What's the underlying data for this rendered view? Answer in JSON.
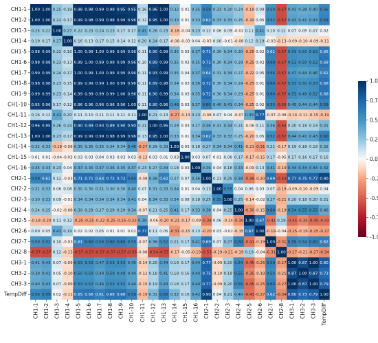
{
  "chart_data": {
    "type": "heatmap",
    "title": "",
    "xlabel": "",
    "ylabel": "",
    "labels": [
      "CH1-1",
      "CH1-2",
      "CH1-3",
      "CH1-4",
      "CH1-5",
      "CH1-6",
      "CH1-7",
      "CH1-8",
      "CH1-9",
      "CH1-10",
      "CH1-11",
      "CH1-12",
      "CH1-13",
      "CH1-14",
      "CH1-15",
      "CH1-16",
      "CH2-1",
      "CH2-2",
      "CH2-3",
      "CH2-4",
      "CH2-5",
      "CH2-6",
      "CH2-7",
      "CH2-8",
      "CH3-1",
      "CH3-2",
      "CH3-3",
      "TempDiff"
    ],
    "values": [
      [
        1.0,
        1.0,
        0.25,
        0.19,
        0.98,
        0.98,
        0.99,
        0.98,
        0.95,
        0.95,
        0.16,
        0.96,
        1.0,
        0.32,
        0.01,
        0.35,
        0.59,
        0.31,
        0.3,
        0.24,
        -0.18,
        0.09,
        0.5,
        -0.57,
        0.41,
        0.38,
        0.4,
        0.56
      ],
      [
        1.0,
        1.0,
        0.22,
        0.17,
        0.99,
        0.98,
        0.99,
        0.98,
        0.99,
        0.96,
        0.12,
        0.95,
        1.0,
        0.33,
        0.01,
        0.33,
        0.62,
        0.33,
        0.33,
        0.25,
        -0.2,
        0.05,
        0.52,
        -0.57,
        0.43,
        0.41,
        0.43,
        0.59
      ],
      [
        0.25,
        0.22,
        1.0,
        0.27,
        0.22,
        0.23,
        0.24,
        0.23,
        0.17,
        0.17,
        0.41,
        0.26,
        0.23,
        -0.18,
        -0.04,
        0.23,
        0.12,
        0.06,
        0.09,
        -0.02,
        0.11,
        0.41,
        0.1,
        0.12,
        0.07,
        0.05,
        0.07,
        0.02
      ],
      [
        0.19,
        0.17,
        0.27,
        1.0,
        0.16,
        0.13,
        0.17,
        0.15,
        0.14,
        0.12,
        0.2,
        0.24,
        0.17,
        -0.08,
        -0.03,
        0.04,
        -0.03,
        0.08,
        -0.01,
        -0.08,
        0.12,
        0.19,
        -0.03,
        -0.13,
        -0.09,
        -0.1,
        -0.09,
        -0.11
      ],
      [
        0.98,
        0.99,
        0.22,
        0.16,
        1.0,
        0.99,
        1.0,
        0.99,
        0.99,
        0.96,
        0.11,
        0.9,
        0.99,
        0.35,
        0.03,
        0.37,
        0.71,
        0.3,
        0.34,
        0.3,
        -0.25,
        0.02,
        0.61,
        -0.57,
        0.53,
        0.5,
        0.53,
        0.65
      ],
      [
        0.98,
        0.98,
        0.23,
        0.13,
        0.99,
        1.0,
        0.99,
        0.99,
        0.99,
        0.96,
        0.1,
        0.89,
        0.99,
        0.35,
        0.03,
        0.35,
        0.71,
        0.3,
        0.34,
        0.29,
        -0.25,
        0.02,
        0.6,
        -0.57,
        0.53,
        0.5,
        0.52,
        0.68
      ],
      [
        0.99,
        0.99,
        0.24,
        0.17,
        1.0,
        0.99,
        1.0,
        0.99,
        0.99,
        0.96,
        0.11,
        0.93,
        0.99,
        0.35,
        0.04,
        0.37,
        0.64,
        0.31,
        0.34,
        0.27,
        -0.22,
        0.05,
        0.56,
        -0.57,
        0.47,
        0.44,
        0.46,
        0.61
      ],
      [
        0.98,
        0.98,
        0.23,
        0.15,
        0.99,
        0.99,
        0.99,
        1.0,
        0.99,
        0.96,
        0.11,
        0.89,
        0.98,
        0.34,
        0.03,
        0.36,
        0.72,
        0.3,
        0.34,
        0.29,
        -0.25,
        0.01,
        0.6,
        -0.57,
        0.53,
        0.5,
        0.53,
        0.68
      ],
      [
        0.99,
        0.99,
        0.23,
        0.14,
        0.99,
        0.99,
        0.99,
        0.99,
        1.0,
        0.96,
        0.11,
        0.9,
        0.99,
        0.34,
        0.03,
        0.35,
        0.72,
        0.3,
        0.34,
        0.29,
        -0.25,
        0.01,
        0.6,
        -0.57,
        0.53,
        0.49,
        0.52,
        0.68
      ],
      [
        0.95,
        0.96,
        0.17,
        0.12,
        0.96,
        0.96,
        0.96,
        0.96,
        0.96,
        1.0,
        0.11,
        0.9,
        0.96,
        0.48,
        0.03,
        0.37,
        0.6,
        0.4,
        0.41,
        0.34,
        -0.25,
        0.02,
        0.55,
        -0.56,
        0.45,
        0.44,
        0.44,
        0.59
      ],
      [
        0.16,
        0.12,
        0.41,
        0.2,
        0.11,
        0.1,
        0.11,
        0.11,
        0.11,
        0.11,
        1.0,
        0.21,
        0.13,
        -0.27,
        -0.13,
        0.23,
        -0.08,
        0.07,
        0.04,
        -0.07,
        0.39,
        0.77,
        -0.07,
        -0.08,
        -0.14,
        -0.12,
        -0.15,
        -0.19
      ],
      [
        0.96,
        0.95,
        0.26,
        0.24,
        0.9,
        0.89,
        0.93,
        0.89,
        0.9,
        0.9,
        0.21,
        1.0,
        0.95,
        0.29,
        0.03,
        0.27,
        0.36,
        0.31,
        0.34,
        0.21,
        -0.06,
        0.11,
        0.36,
        -0.54,
        0.2,
        0.18,
        0.19,
        0.31
      ],
      [
        1.0,
        1.0,
        0.23,
        0.17,
        0.99,
        0.99,
        0.99,
        0.98,
        0.99,
        0.96,
        0.13,
        0.95,
        1.0,
        0.33,
        0.01,
        0.34,
        0.62,
        0.33,
        0.33,
        0.25,
        -0.2,
        0.05,
        0.52,
        -0.57,
        0.44,
        0.41,
        0.43,
        0.6
      ],
      [
        0.32,
        0.33,
        -0.18,
        -0.08,
        0.35,
        0.35,
        0.35,
        0.34,
        0.34,
        0.48,
        -0.27,
        0.29,
        0.33,
        1.0,
        0.03,
        0.18,
        0.27,
        0.34,
        0.34,
        0.41,
        -0.21,
        -0.31,
        0.21,
        -0.17,
        0.19,
        0.18,
        0.18,
        0.32
      ],
      [
        0.01,
        0.01,
        -0.04,
        -0.03,
        0.03,
        0.03,
        0.04,
        0.03,
        0.03,
        0.03,
        -0.13,
        0.03,
        0.01,
        0.03,
        1.0,
        0.03,
        0.07,
        0.01,
        0.08,
        0.17,
        -0.17,
        -0.15,
        0.17,
        -0.05,
        0.17,
        0.16,
        0.17,
        0.16
      ],
      [
        0.35,
        0.33,
        0.23,
        0.04,
        0.37,
        0.35,
        0.37,
        0.36,
        0.35,
        0.37,
        0.23,
        0.27,
        0.34,
        0.18,
        0.03,
        1.0,
        0.36,
        0.04,
        0.18,
        0.33,
        -0.09,
        0.13,
        0.41,
        -0.19,
        0.44,
        0.44,
        0.44,
        0.42
      ],
      [
        0.59,
        0.62,
        0.12,
        -0.03,
        0.71,
        0.71,
        0.64,
        0.72,
        0.72,
        0.6,
        -0.08,
        0.36,
        0.62,
        0.27,
        0.07,
        0.36,
        1.0,
        0.13,
        0.25,
        0.38,
        -0.39,
        -0.2,
        0.69,
        -0.53,
        0.77,
        0.75,
        0.77,
        0.9
      ],
      [
        0.31,
        0.33,
        0.06,
        0.08,
        0.3,
        0.3,
        0.31,
        0.3,
        0.3,
        0.4,
        0.07,
        0.31,
        0.33,
        0.34,
        0.01,
        0.04,
        0.13,
        1.0,
        0.55,
        0.04,
        0.06,
        0.03,
        0.07,
        -0.19,
        -0.09,
        -0.1,
        -0.09,
        0.04
      ],
      [
        0.3,
        0.33,
        0.09,
        -0.01,
        0.34,
        0.34,
        0.34,
        0.34,
        0.34,
        0.41,
        0.04,
        0.34,
        0.33,
        0.34,
        0.08,
        0.18,
        0.25,
        0.55,
        1.0,
        0.25,
        -0.14,
        -0.02,
        0.27,
        -0.21,
        0.2,
        0.18,
        0.2,
        0.21
      ],
      [
        0.24,
        0.25,
        -0.02,
        -0.08,
        0.3,
        0.29,
        0.27,
        0.29,
        0.29,
        0.34,
        -0.07,
        0.21,
        0.25,
        0.41,
        0.17,
        0.33,
        0.38,
        0.04,
        0.25,
        1.0,
        -0.3,
        -0.15,
        0.6,
        -0.19,
        0.54,
        0.55,
        0.55,
        0.4
      ],
      [
        -0.18,
        -0.2,
        0.11,
        0.12,
        -0.25,
        -0.25,
        -0.22,
        -0.25,
        -0.25,
        -0.25,
        0.39,
        -0.06,
        -0.2,
        -0.21,
        -0.17,
        -0.09,
        -0.39,
        0.06,
        -0.14,
        -0.3,
        1.0,
        0.67,
        -0.41,
        0.19,
        -0.45,
        -0.35,
        -0.45,
        -0.43
      ],
      [
        0.09,
        0.05,
        0.41,
        0.19,
        0.02,
        0.02,
        0.05,
        0.01,
        0.01,
        0.02,
        0.77,
        0.11,
        0.05,
        -0.31,
        -0.15,
        0.13,
        -0.2,
        0.03,
        -0.02,
        -0.15,
        0.67,
        1.0,
        -0.19,
        -0.04,
        -0.25,
        -0.19,
        -0.25,
        -0.27
      ],
      [
        0.5,
        0.52,
        0.1,
        -0.03,
        0.61,
        0.6,
        0.56,
        0.6,
        0.6,
        0.55,
        -0.07,
        0.36,
        0.52,
        0.21,
        0.17,
        0.41,
        0.69,
        0.07,
        0.27,
        0.6,
        -0.41,
        -0.19,
        1.0,
        -0.31,
        0.59,
        0.54,
        0.6,
        0.62
      ],
      [
        -0.57,
        -0.57,
        0.12,
        -0.13,
        -0.57,
        -0.57,
        -0.57,
        -0.57,
        -0.57,
        -0.56,
        -0.08,
        -0.54,
        -0.57,
        -0.17,
        -0.05,
        -0.19,
        -0.53,
        -0.19,
        -0.21,
        -0.19,
        0.19,
        -0.04,
        -0.31,
        1.0,
        -0.27,
        -0.21,
        -0.27,
        -0.34
      ],
      [
        0.41,
        0.43,
        0.07,
        -0.09,
        0.53,
        0.53,
        0.47,
        0.53,
        0.53,
        0.45,
        -0.14,
        0.2,
        0.44,
        0.19,
        0.17,
        0.44,
        0.77,
        -0.09,
        0.2,
        0.54,
        -0.45,
        -0.25,
        0.59,
        -0.27,
        1.0,
        0.87,
        1.0,
        0.8
      ],
      [
        0.38,
        0.41,
        0.05,
        -0.1,
        0.5,
        0.5,
        0.44,
        0.5,
        0.49,
        0.44,
        -0.12,
        0.18,
        0.41,
        0.18,
        0.16,
        0.44,
        0.75,
        -0.1,
        0.18,
        0.55,
        -0.35,
        -0.19,
        0.54,
        -0.21,
        0.87,
        1.0,
        0.87,
        0.73
      ],
      [
        0.4,
        0.43,
        0.07,
        -0.09,
        0.53,
        0.52,
        0.46,
        0.53,
        0.52,
        0.44,
        -0.15,
        0.19,
        0.43,
        0.18,
        0.17,
        0.44,
        0.77,
        -0.09,
        0.2,
        0.55,
        -0.45,
        -0.25,
        0.6,
        -0.27,
        1.0,
        0.87,
        1.0,
        0.79
      ],
      [
        0.56,
        0.59,
        0.02,
        -0.11,
        0.65,
        0.68,
        0.61,
        0.68,
        0.68,
        0.59,
        -0.19,
        0.31,
        0.6,
        0.32,
        0.16,
        0.42,
        0.9,
        0.04,
        0.21,
        0.4,
        -0.43,
        -0.27,
        0.62,
        -0.34,
        0.8,
        0.73,
        0.79,
        1.0
      ]
    ],
    "vmin": -1.0,
    "vmax": 1.0,
    "colorbar_ticks": [
      "1.00",
      "0.75",
      "0.50",
      "0.25",
      "0.00",
      "-0.25",
      "-0.50",
      "-0.75",
      "-1.00"
    ],
    "colormap": "RdBu",
    "colors": {
      "neg": "#67001f",
      "mid": "#f7f7f7",
      "pos": "#053061"
    }
  }
}
